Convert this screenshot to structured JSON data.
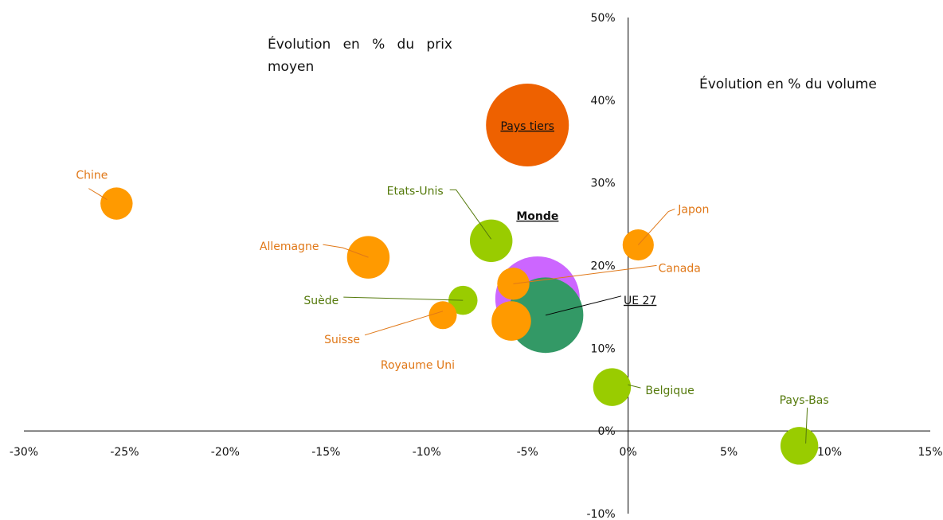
{
  "annotations": {
    "price_axis": "Évolution en % du prix moyen",
    "volume_axis": "Évolution en % du volume"
  },
  "chart_data": {
    "type": "scatter",
    "variant": "bubble",
    "xlim": [
      -0.3,
      0.15
    ],
    "ylim": [
      -0.1,
      0.5
    ],
    "x_ticks": [
      -0.3,
      -0.25,
      -0.2,
      -0.15,
      -0.1,
      -0.05,
      0,
      0.05,
      0.1,
      0.15
    ],
    "x_tick_labels": [
      "-30%",
      "-25%",
      "-20%",
      "-15%",
      "-10%",
      "-5%",
      "0%",
      "5%",
      "10%",
      "15%"
    ],
    "y_ticks": [
      -0.1,
      0,
      0.1,
      0.2,
      0.3,
      0.4,
      0.5
    ],
    "y_tick_labels": [
      "-10%",
      "0%",
      "10%",
      "20%",
      "30%",
      "40%",
      "50%"
    ],
    "grid": false,
    "colors": {
      "third_country": "#ff9a00",
      "eu_country": "#99cc00",
      "pays_tiers": "#ee6100",
      "monde": "#cc66ff",
      "ue27": "#339966",
      "eu_label": "#557a0c",
      "third_label": "#e07818"
    },
    "points": [
      {
        "label": "Monde",
        "x": -0.045,
        "y": 0.16,
        "size": 5.5,
        "color": "#cc66ff",
        "style": "bold-underline"
      },
      {
        "label": "Pays tiers",
        "x": -0.05,
        "y": 0.37,
        "size": 5.3,
        "color": "#ee6100",
        "style": "underline"
      },
      {
        "label": "UE 27",
        "x": -0.041,
        "y": 0.14,
        "size": 4.4,
        "color": "#339966",
        "style": "underline"
      },
      {
        "label": "Chine",
        "x": -0.254,
        "y": 0.275,
        "size": 0.8,
        "color": "#ff9a00"
      },
      {
        "label": "Allemagne",
        "x": -0.129,
        "y": 0.21,
        "size": 1.4,
        "color": "#ff9a00"
      },
      {
        "label": "Etats-Unis",
        "x": -0.068,
        "y": 0.23,
        "size": 1.4,
        "color": "#99cc00"
      },
      {
        "label": "Suède",
        "x": -0.082,
        "y": 0.158,
        "size": 0.65,
        "color": "#99cc00"
      },
      {
        "label": "Suisse",
        "x": -0.092,
        "y": 0.14,
        "size": 0.6,
        "color": "#ff9a00"
      },
      {
        "label": "Royaume Uni",
        "x": -0.058,
        "y": 0.133,
        "size": 1.2,
        "color": "#ff9a00"
      },
      {
        "label": "Canada",
        "x": -0.057,
        "y": 0.178,
        "size": 0.8,
        "color": "#ff9a00"
      },
      {
        "label": "Japon",
        "x": 0.005,
        "y": 0.225,
        "size": 0.75,
        "color": "#ff9a00"
      },
      {
        "label": "Belgique",
        "x": -0.008,
        "y": 0.053,
        "size": 1.1,
        "color": "#99cc00"
      },
      {
        "label": "Pays-Bas",
        "x": 0.085,
        "y": -0.018,
        "size": 1.1,
        "color": "#99cc00"
      }
    ]
  }
}
